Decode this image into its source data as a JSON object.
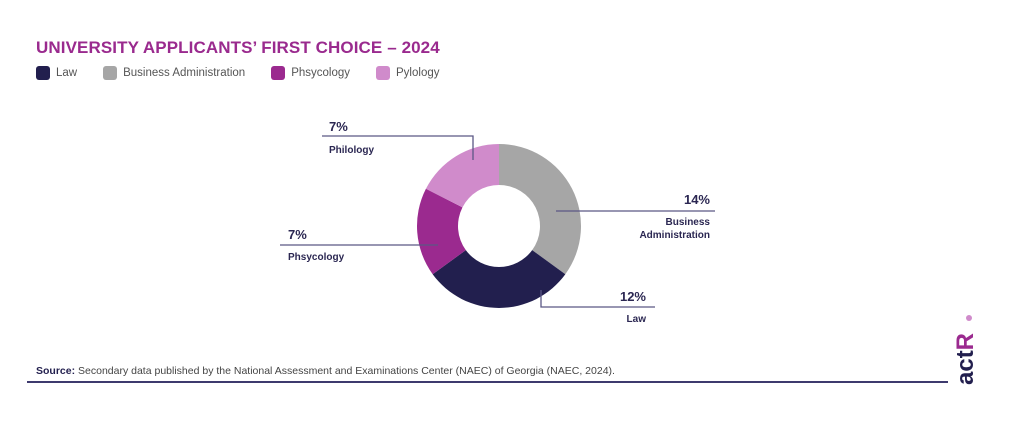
{
  "title": "UNIVERSITY APPLICANTS’ FIRST CHOICE – 2024",
  "legend": [
    {
      "label": "Law",
      "color": "#221f4e"
    },
    {
      "label": "Business Administration",
      "color": "#a6a6a6"
    },
    {
      "label": "Phsycology",
      "color": "#9b2a8f"
    },
    {
      "label": "Pylology",
      "color": "#d08bcb"
    }
  ],
  "chart_data": {
    "type": "pie",
    "variant": "donut",
    "title": "UNIVERSITY APPLICANTS’ FIRST CHOICE – 2024",
    "start": "top",
    "direction": "clockwise",
    "slices": [
      {
        "name": "Business Administration",
        "label_line1": "Business",
        "label_line2": "Administration",
        "value": 14,
        "value_label": "14%",
        "color": "#a6a6a6"
      },
      {
        "name": "Law",
        "label_line1": "Law",
        "label_line2": "",
        "value": 12,
        "value_label": "12%",
        "color": "#221f4e"
      },
      {
        "name": "Phsycology",
        "label_line1": "Phsycology",
        "label_line2": "",
        "value": 7,
        "value_label": "7%",
        "color": "#9b2a8f"
      },
      {
        "name": "Philology",
        "label_line1": "Philology",
        "label_line2": "",
        "value": 7,
        "value_label": "7%",
        "color": "#d08bcb"
      }
    ],
    "legend_position": "top-left"
  },
  "source": {
    "label": "Source:",
    "text": " Secondary data published by the National Assessment and Examinations Center (NAEC) of Georgia (NAEC, 2024)."
  },
  "logo": {
    "text": "actR",
    "accent": "#9b2a8f",
    "main": "#221f4e"
  },
  "colors": {
    "accent": "#9a2a8e",
    "annotation_text": "#2b2752",
    "leader_line": "#5b5785"
  }
}
